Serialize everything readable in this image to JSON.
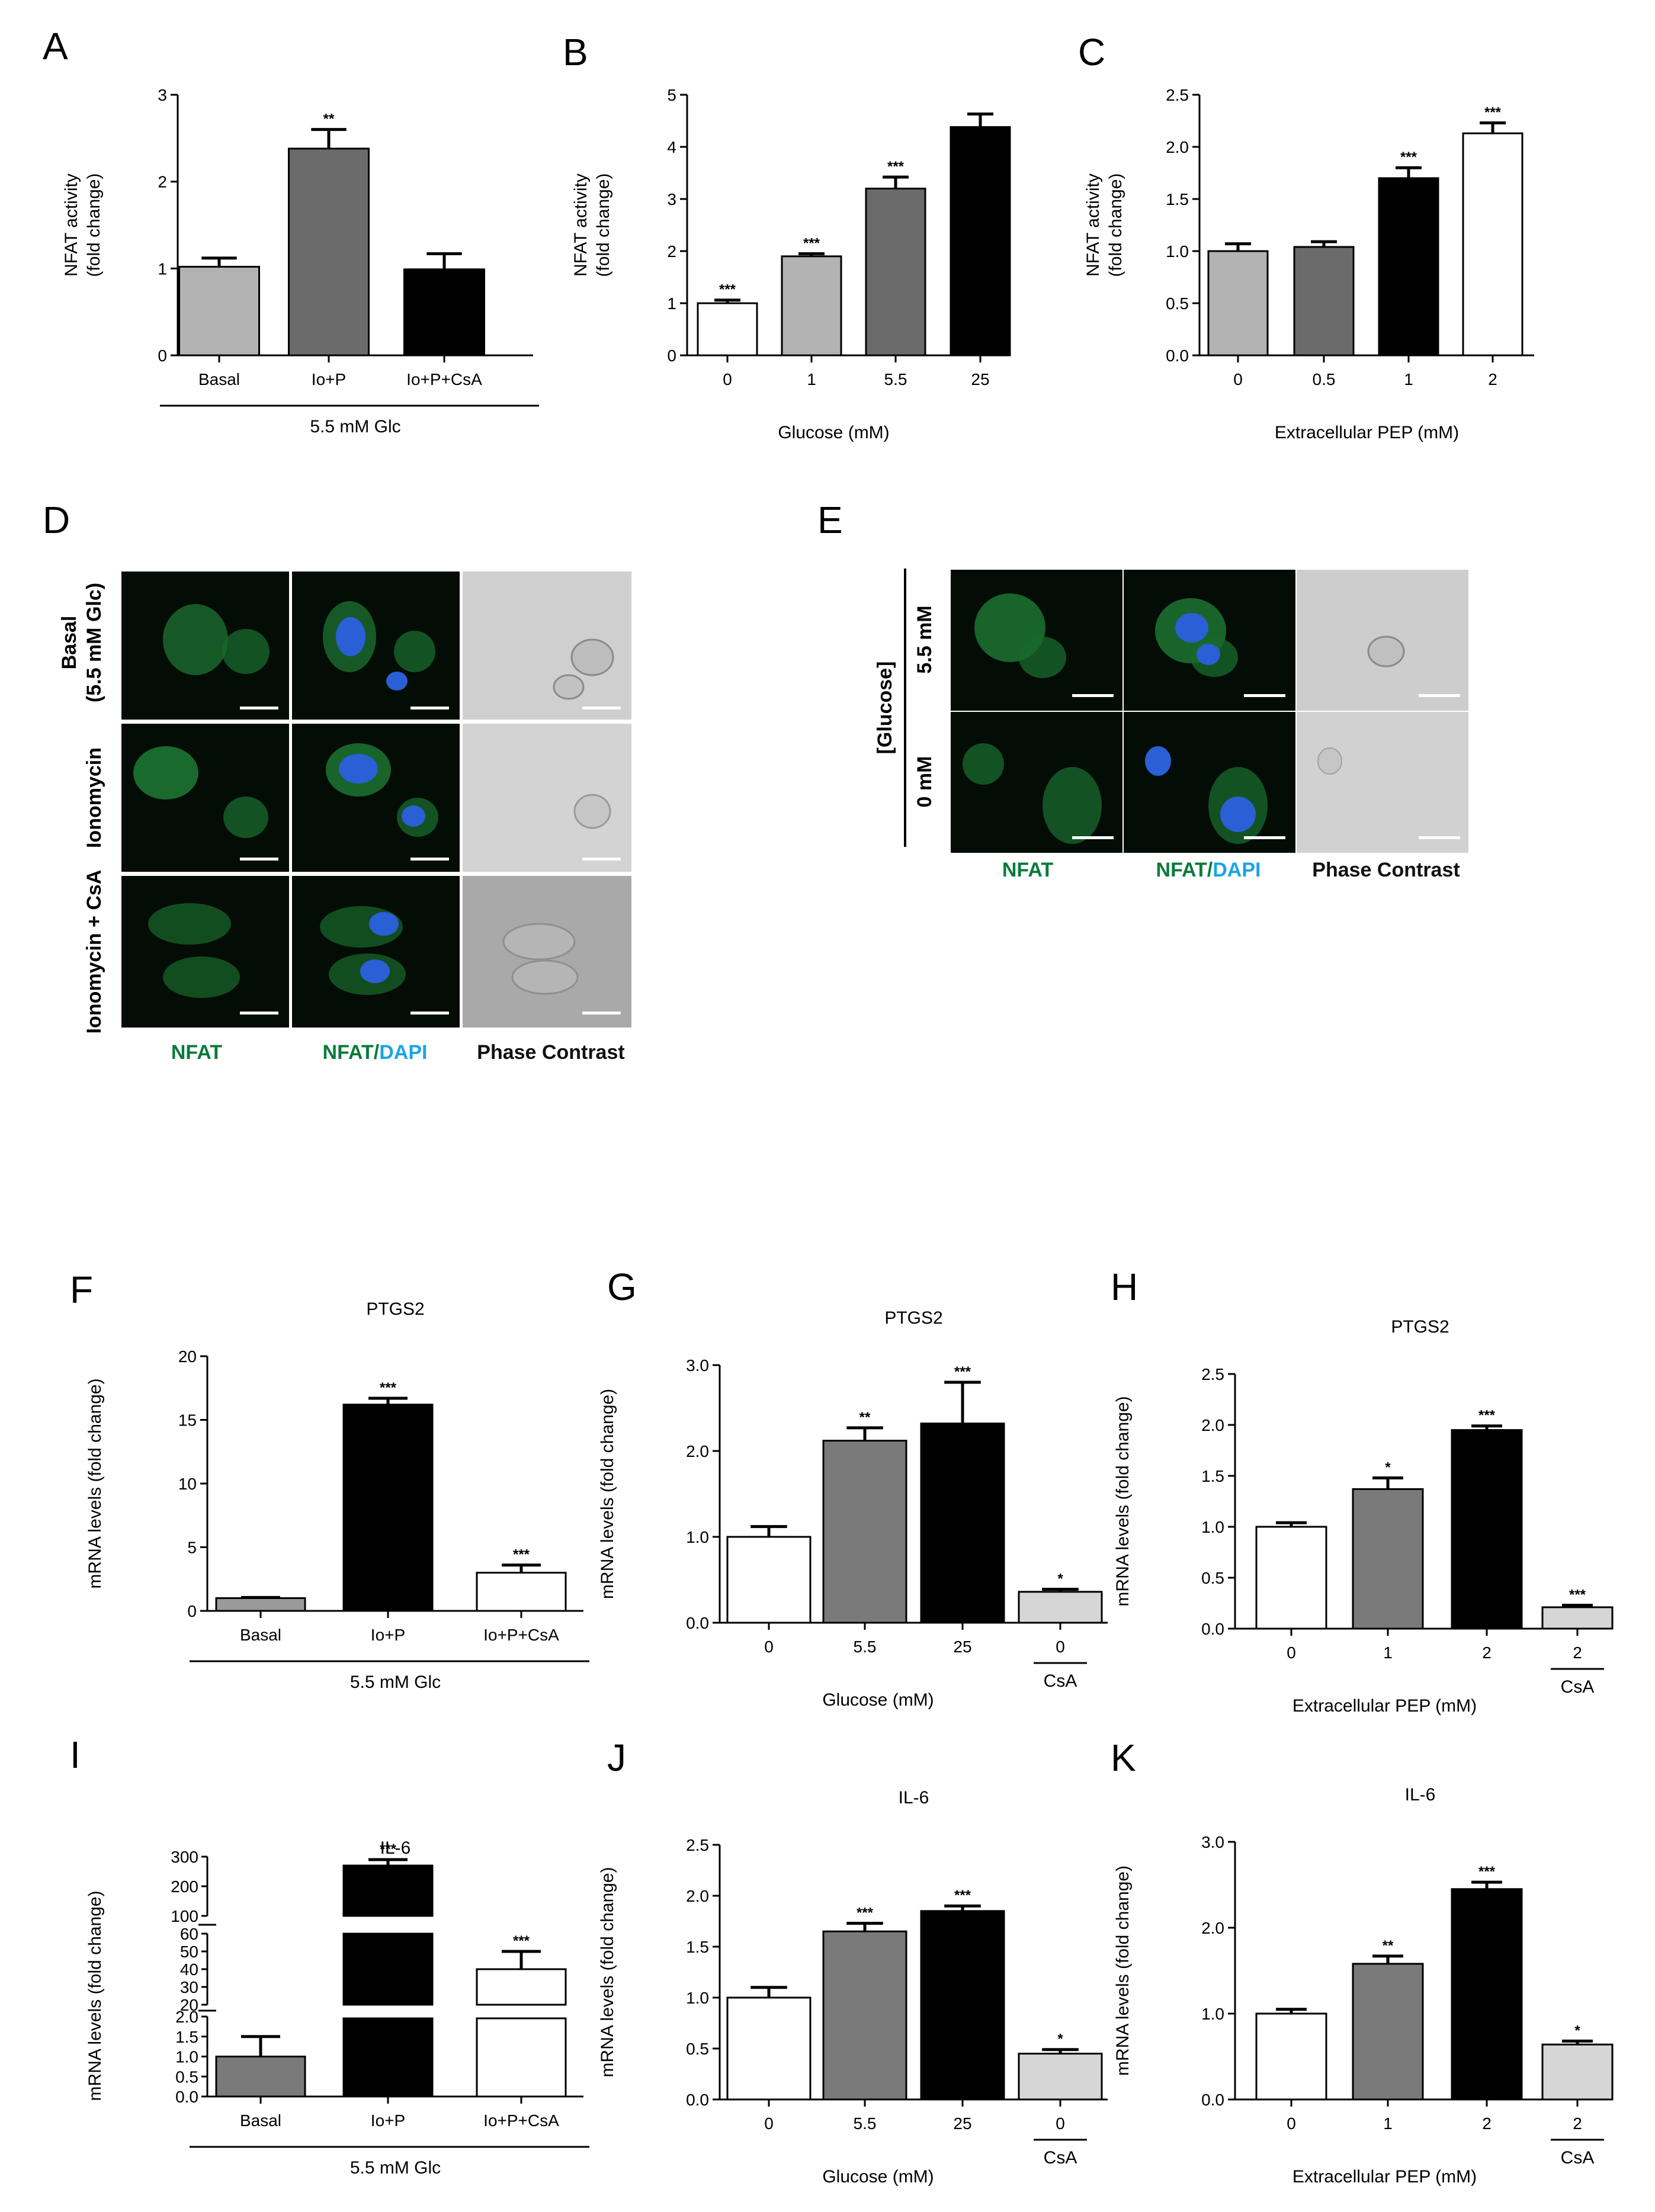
{
  "figure_title": "",
  "micrographs": {
    "D": {
      "rows": [
        "Basal",
        "(5.5 mM Glc)",
        "Ionomycin",
        "Ionomycin + CsA"
      ],
      "cols": {
        "nfat": "NFAT",
        "slash": "/",
        "dapi": "DAPI",
        "phase": "Phase Contrast"
      }
    },
    "E": {
      "group": "[Glucose]",
      "rows": [
        "5.5 mM",
        "0 mM"
      ],
      "cols": {
        "nfat": "NFAT",
        "slash": "/",
        "dapi": "DAPI",
        "phase": "Phase Contrast"
      }
    },
    "colors": {
      "nfat": "#0a7a3a",
      "dapi": "#1aa3e8",
      "phase": "#111111"
    }
  },
  "chart_data": [
    {
      "id": "A",
      "panel": "A",
      "type": "bar",
      "title": "",
      "ylabel": [
        "NFAT activity",
        "(fold change)"
      ],
      "xlabel": "",
      "group_label": "5.5 mM Glc",
      "cs_label": "",
      "ylim": [
        0,
        3
      ],
      "yticks": [
        0,
        1,
        2,
        3
      ],
      "ytick_labels": [
        "0",
        "1",
        "2",
        "3"
      ],
      "categories": [
        "Basal",
        "Io+P",
        "Io+P+CsA"
      ],
      "values": [
        1.02,
        2.38,
        0.99
      ],
      "errors": [
        0.1,
        0.22,
        0.18
      ],
      "stars": [
        "",
        "**",
        ""
      ],
      "colors": [
        "#b3b3b3",
        "#6b6b6b",
        "#000000"
      ]
    },
    {
      "id": "B",
      "panel": "B",
      "type": "bar",
      "title": "",
      "ylabel": [
        "NFAT activity",
        "(fold change)"
      ],
      "xlabel": "Glucose (mM)",
      "group_label": "",
      "cs_label": "",
      "ylim": [
        0,
        5
      ],
      "yticks": [
        0,
        1,
        2,
        3,
        4,
        5
      ],
      "ytick_labels": [
        "0",
        "1",
        "2",
        "3",
        "4",
        "5"
      ],
      "categories": [
        "0",
        "1",
        "5.5",
        "25"
      ],
      "values": [
        1.0,
        1.9,
        3.2,
        4.38
      ],
      "errors": [
        0.06,
        0.05,
        0.22,
        0.25
      ],
      "stars": [
        "***",
        "***",
        "***",
        ""
      ],
      "colors": [
        "#ffffff",
        "#b3b3b3",
        "#6b6b6b",
        "#000000"
      ]
    },
    {
      "id": "C",
      "panel": "C",
      "type": "bar",
      "title": "",
      "ylabel": [
        "NFAT activity",
        "(fold change)"
      ],
      "xlabel": "Extracellular PEP (mM)",
      "group_label": "",
      "cs_label": "",
      "ylim": [
        0,
        2.5
      ],
      "yticks": [
        0,
        0.5,
        1,
        1.5,
        2,
        2.5
      ],
      "ytick_labels": [
        "0.0",
        "0.5",
        "1.0",
        "1.5",
        "2.0",
        "2.5"
      ],
      "categories": [
        "0",
        "0.5",
        "1",
        "2"
      ],
      "values": [
        1.0,
        1.04,
        1.7,
        2.13
      ],
      "errors": [
        0.07,
        0.05,
        0.1,
        0.1
      ],
      "stars": [
        "",
        "",
        "***",
        "***"
      ],
      "colors": [
        "#b3b3b3",
        "#6b6b6b",
        "#000000",
        "#ffffff"
      ]
    },
    {
      "id": "F",
      "panel": "F",
      "type": "bar",
      "title": "PTGS2",
      "ylabel": [
        "mRNA levels (fold change)"
      ],
      "xlabel": "",
      "group_label": "5.5 mM Glc",
      "cs_label": "",
      "ylim": [
        0,
        20
      ],
      "yticks": [
        0,
        5,
        10,
        15,
        20
      ],
      "ytick_labels": [
        "0",
        "5",
        "10",
        "15",
        "20"
      ],
      "categories": [
        "Basal",
        "Io+P",
        "Io+P+CsA"
      ],
      "values": [
        1.0,
        16.2,
        3.0
      ],
      "errors": [
        0.05,
        0.5,
        0.6
      ],
      "stars": [
        "",
        "***",
        "***"
      ],
      "colors": [
        "#9a9a9a",
        "#000000",
        "#ffffff"
      ]
    },
    {
      "id": "G",
      "panel": "G",
      "type": "bar",
      "title": "PTGS2",
      "ylabel": [
        "mRNA levels (fold change)"
      ],
      "xlabel": "Glucose (mM)",
      "group_label": "",
      "cs_label": "CsA",
      "ylim": [
        0,
        3
      ],
      "yticks": [
        0,
        1,
        2,
        3
      ],
      "ytick_labels": [
        "0.0",
        "1.0",
        "2.0",
        "3.0"
      ],
      "categories": [
        "0",
        "5.5",
        "25",
        "0"
      ],
      "values": [
        1.0,
        2.12,
        2.32,
        0.36
      ],
      "errors": [
        0.12,
        0.15,
        0.48,
        0.03
      ],
      "stars": [
        "",
        "**",
        "***",
        "*"
      ],
      "colors": [
        "#ffffff",
        "#7a7a7a",
        "#000000",
        "#d6d6d6"
      ]
    },
    {
      "id": "H",
      "panel": "H",
      "type": "bar",
      "title": "PTGS2",
      "ylabel": [
        "mRNA levels (fold change)"
      ],
      "xlabel": "Extracellular PEP (mM)",
      "group_label": "",
      "cs_label": "CsA",
      "ylim": [
        0,
        2.5
      ],
      "yticks": [
        0,
        0.5,
        1,
        1.5,
        2,
        2.5
      ],
      "ytick_labels": [
        "0.0",
        "0.5",
        "1.0",
        "1.5",
        "2.0",
        "2.5"
      ],
      "categories": [
        "0",
        "1",
        "2",
        "2"
      ],
      "values": [
        1.0,
        1.37,
        1.95,
        0.21
      ],
      "errors": [
        0.04,
        0.11,
        0.04,
        0.02
      ],
      "stars": [
        "",
        "*",
        "***",
        "***"
      ],
      "colors": [
        "#ffffff",
        "#7a7a7a",
        "#000000",
        "#d6d6d6"
      ]
    },
    {
      "id": "I",
      "panel": "I",
      "type": "bar",
      "title": "IL-6",
      "ylabel": [
        "mRNA levels (fold change)"
      ],
      "xlabel": "",
      "group_label": "5.5 mM Glc",
      "cs_label": "",
      "ylim": [
        0,
        300
      ],
      "y_axis_breaks": [
        [
          0,
          2
        ],
        [
          20,
          60
        ],
        [
          100,
          300
        ]
      ],
      "ytick_labels": [
        "0.0",
        "0.5",
        "1.0",
        "1.5",
        "2.0",
        "20",
        "30",
        "40",
        "50",
        "60",
        "100",
        "200",
        "300"
      ],
      "categories": [
        "Basal",
        "Io+P",
        "Io+P+CsA"
      ],
      "values": [
        1.0,
        270,
        40
      ],
      "errors": [
        0.5,
        20,
        10
      ],
      "stars": [
        "",
        "***",
        "***"
      ],
      "colors": [
        "#7a7a7a",
        "#000000",
        "#ffffff"
      ]
    },
    {
      "id": "J",
      "panel": "J",
      "type": "bar",
      "title": "IL-6",
      "ylabel": [
        "mRNA levels (fold change)"
      ],
      "xlabel": "Glucose (mM)",
      "group_label": "",
      "cs_label": "CsA",
      "ylim": [
        0,
        2.5
      ],
      "yticks": [
        0,
        0.5,
        1,
        1.5,
        2,
        2.5
      ],
      "ytick_labels": [
        "0.0",
        "0.5",
        "1.0",
        "1.5",
        "2.0",
        "2.5"
      ],
      "categories": [
        "0",
        "5.5",
        "25",
        "0"
      ],
      "values": [
        1.0,
        1.65,
        1.85,
        0.45
      ],
      "errors": [
        0.1,
        0.08,
        0.05,
        0.04
      ],
      "stars": [
        "",
        "***",
        "***",
        "*"
      ],
      "colors": [
        "#ffffff",
        "#7a7a7a",
        "#000000",
        "#d6d6d6"
      ]
    },
    {
      "id": "K",
      "panel": "K",
      "type": "bar",
      "title": "IL-6",
      "ylabel": [
        "mRNA levels (fold change)"
      ],
      "xlabel": "Extracellular PEP (mM)",
      "group_label": "",
      "cs_label": "CsA",
      "ylim": [
        0,
        3
      ],
      "yticks": [
        0,
        1,
        2,
        3
      ],
      "ytick_labels": [
        "0.0",
        "1.0",
        "2.0",
        "3.0"
      ],
      "categories": [
        "0",
        "1",
        "2",
        "2"
      ],
      "values": [
        1.0,
        1.58,
        2.45,
        0.64
      ],
      "errors": [
        0.05,
        0.09,
        0.08,
        0.04
      ],
      "stars": [
        "",
        "**",
        "***",
        "*"
      ],
      "colors": [
        "#ffffff",
        "#7a7a7a",
        "#000000",
        "#d6d6d6"
      ]
    }
  ]
}
